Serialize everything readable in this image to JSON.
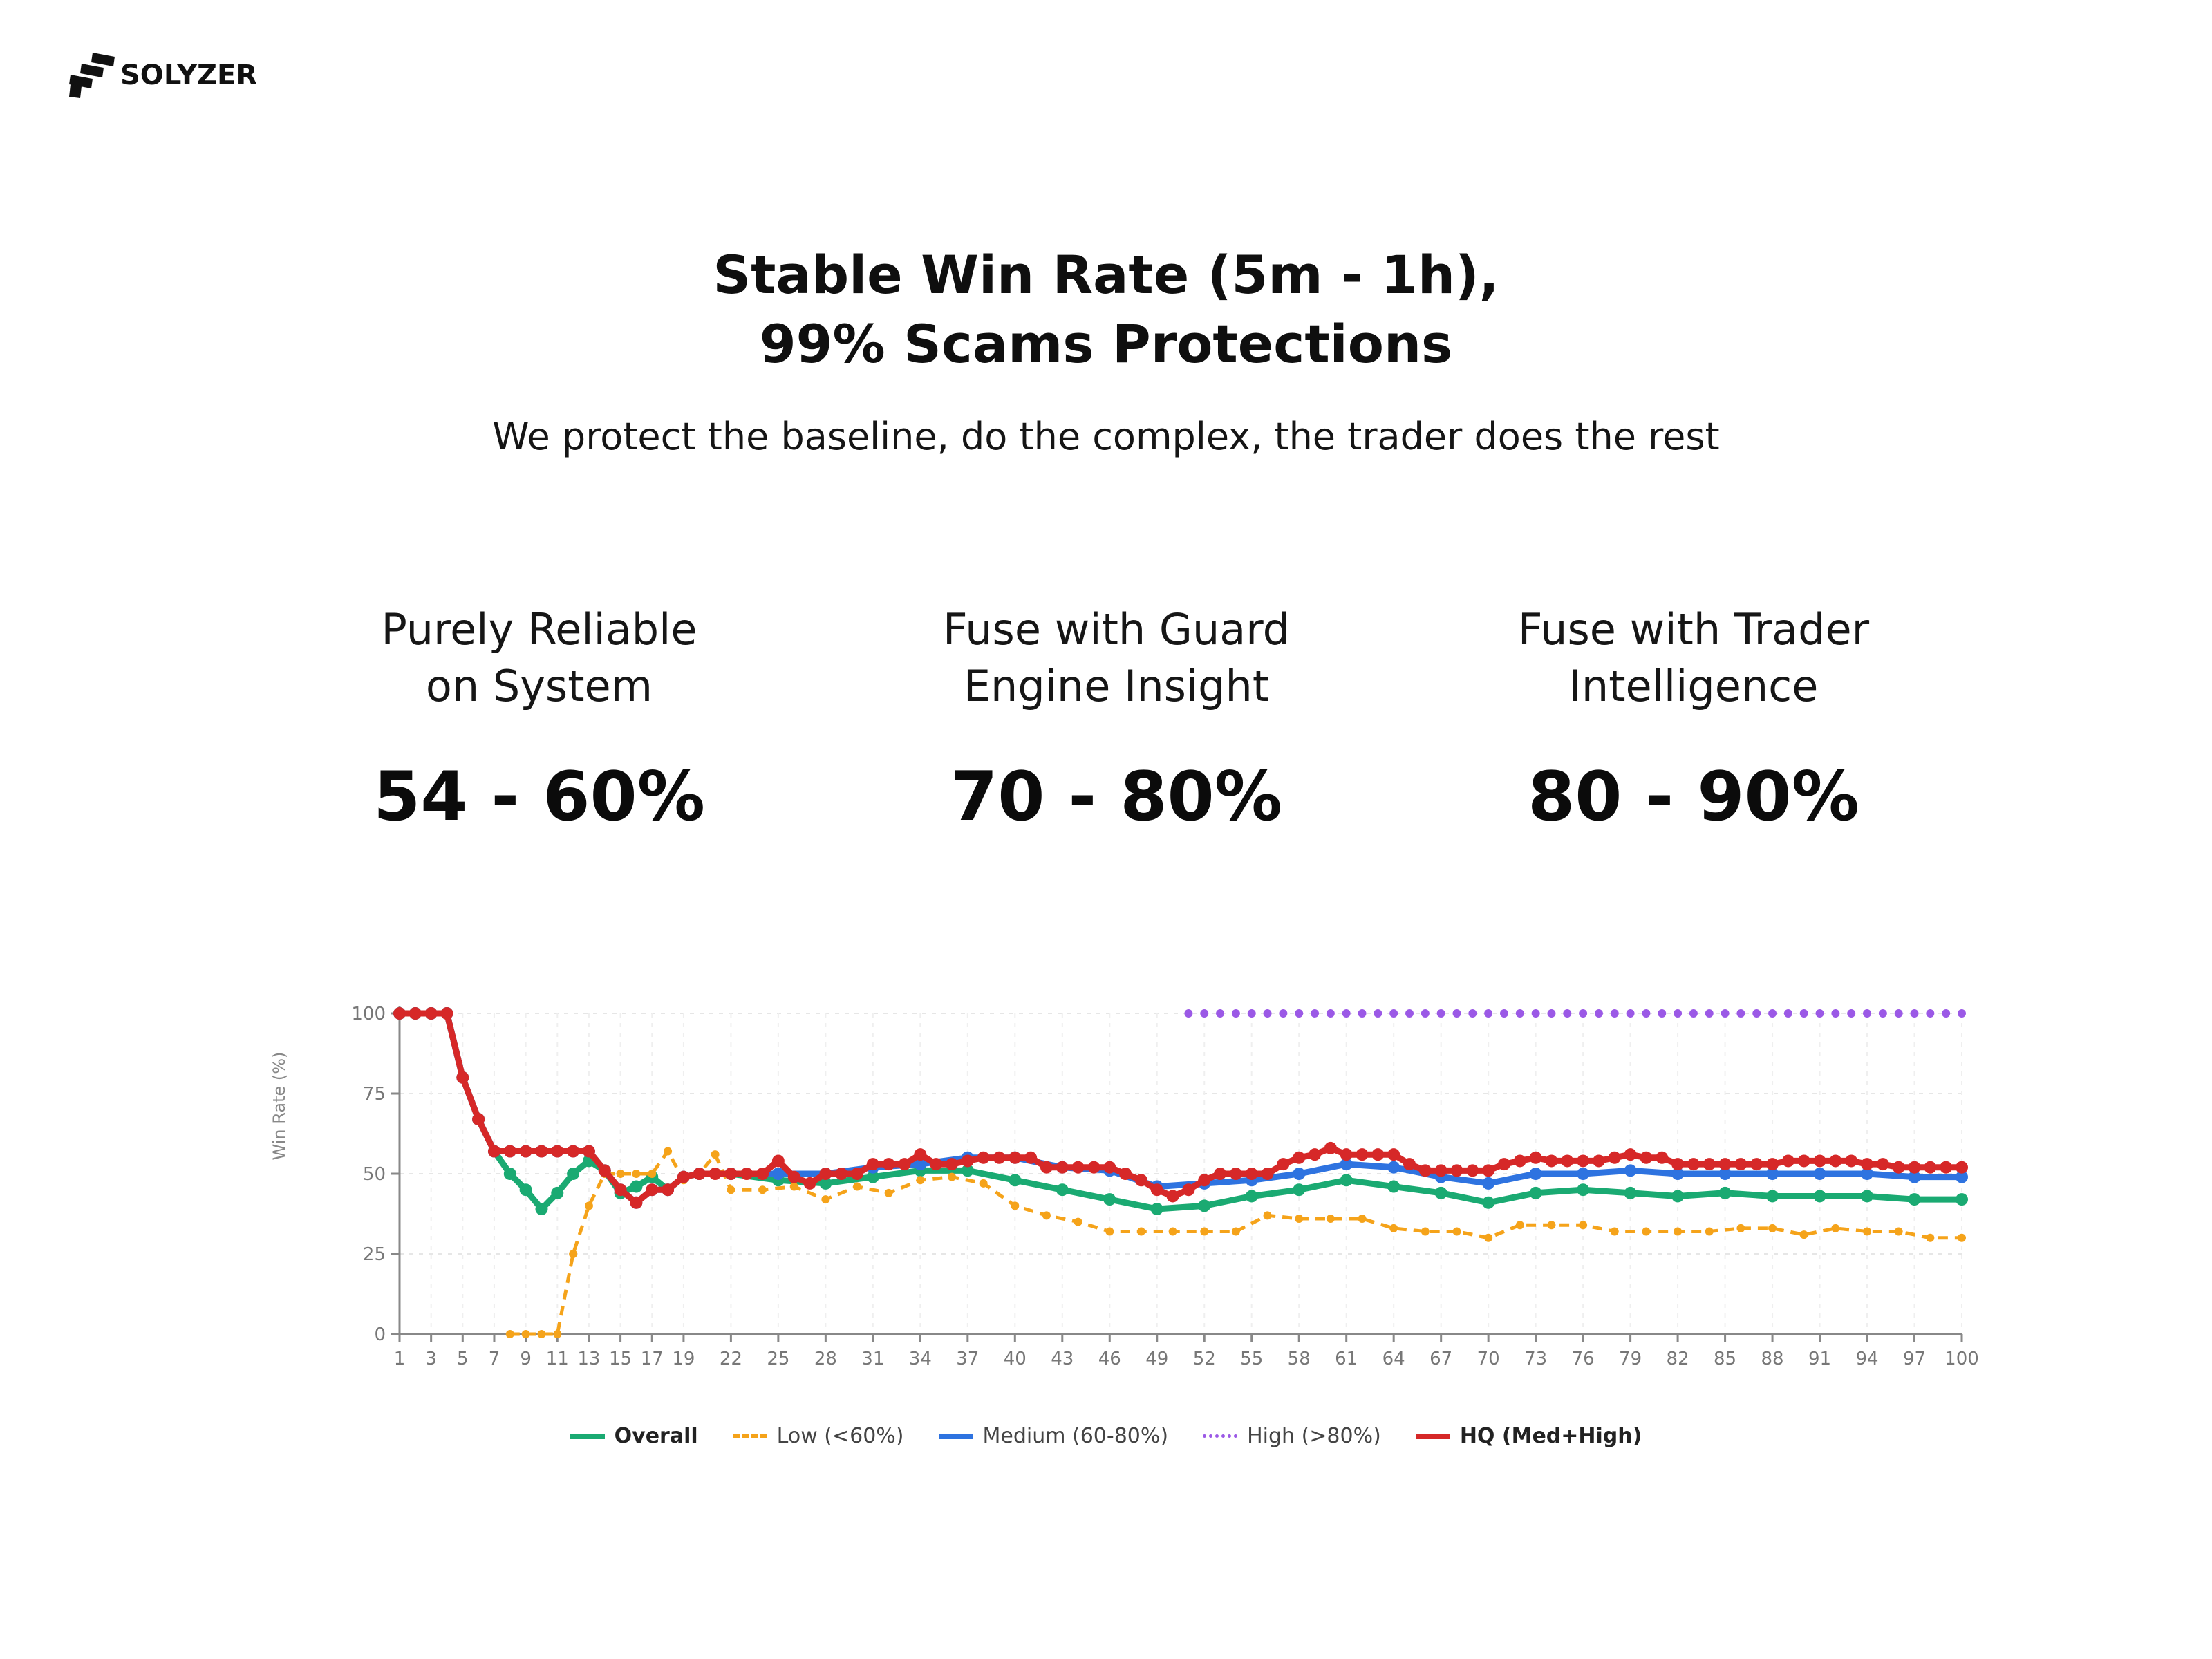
{
  "brand": {
    "name": "SOLYZER",
    "logo_icon": "solyzer-stairs-logo-icon"
  },
  "header": {
    "title_line1": "Stable Win Rate (5m - 1h),",
    "title_line2": "99% Scams Protections",
    "subtitle": "We protect the baseline, do the complex, the trader does the rest"
  },
  "stats": [
    {
      "label_line1": "Purely Reliable",
      "label_line2": "on System",
      "value": "54 - 60%"
    },
    {
      "label_line1": "Fuse with Guard",
      "label_line2": "Engine Insight",
      "value": "70 - 80%"
    },
    {
      "label_line1": "Fuse with Trader",
      "label_line2": "Intelligence",
      "value": "80 - 90%"
    }
  ],
  "chart_data": {
    "type": "line",
    "title": "",
    "xlabel": "",
    "ylabel": "Win Rate (%)",
    "xlim": [
      1,
      100
    ],
    "ylim": [
      0,
      100
    ],
    "yticks": [
      0,
      25,
      50,
      75,
      100
    ],
    "xticks": [
      1,
      3,
      5,
      7,
      9,
      11,
      13,
      15,
      17,
      19,
      22,
      25,
      28,
      31,
      34,
      37,
      40,
      43,
      46,
      49,
      52,
      55,
      58,
      61,
      64,
      67,
      70,
      73,
      76,
      79,
      82,
      85,
      88,
      91,
      94,
      97,
      100
    ],
    "grid": true,
    "legend_position": "bottom",
    "series": [
      {
        "name": "Overall",
        "color": "#1aaa72",
        "style": "solid",
        "x": [
          1,
          2,
          3,
          4,
          5,
          6,
          7,
          8,
          9,
          10,
          11,
          12,
          13,
          14,
          15,
          16,
          17,
          18,
          19,
          20,
          22,
          25,
          28,
          31,
          34,
          37,
          40,
          43,
          46,
          49,
          52,
          55,
          58,
          61,
          64,
          67,
          70,
          73,
          76,
          79,
          82,
          85,
          88,
          91,
          94,
          97,
          100
        ],
        "y": [
          100,
          100,
          100,
          100,
          80,
          67,
          57,
          50,
          45,
          39,
          44,
          50,
          54,
          51,
          44,
          46,
          49,
          45,
          49,
          50,
          50,
          48,
          47,
          49,
          51,
          51,
          48,
          45,
          42,
          39,
          40,
          43,
          45,
          48,
          46,
          44,
          41,
          44,
          45,
          44,
          43,
          44,
          43,
          43,
          43,
          42,
          42
        ]
      },
      {
        "name": "Low (<60%)",
        "color": "#f5a31a",
        "style": "dashed",
        "x": [
          8,
          9,
          10,
          11,
          12,
          13,
          14,
          15,
          16,
          17,
          18,
          19,
          20,
          21,
          22,
          24,
          26,
          28,
          30,
          32,
          34,
          36,
          38,
          40,
          42,
          44,
          46,
          48,
          50,
          52,
          54,
          56,
          58,
          60,
          62,
          64,
          66,
          68,
          70,
          72,
          74,
          76,
          78,
          80,
          82,
          84,
          86,
          88,
          90,
          92,
          94,
          96,
          98,
          100
        ],
        "y": [
          0,
          0,
          0,
          0,
          25,
          40,
          50,
          50,
          50,
          50,
          57,
          48,
          50,
          56,
          45,
          45,
          46,
          42,
          46,
          44,
          48,
          49,
          47,
          40,
          37,
          35,
          32,
          32,
          32,
          32,
          32,
          37,
          36,
          36,
          36,
          33,
          32,
          32,
          30,
          34,
          34,
          34,
          32,
          32,
          32,
          32,
          33,
          33,
          31,
          33,
          32,
          32,
          30,
          30
        ]
      },
      {
        "name": "Medium (60-80%)",
        "color": "#2e73e0",
        "style": "solid",
        "x": [
          1,
          2,
          3,
          4,
          5,
          6,
          7,
          8,
          9,
          10,
          11,
          12,
          13,
          14,
          15,
          16,
          17,
          18,
          19,
          20,
          22,
          25,
          28,
          31,
          34,
          37,
          40,
          43,
          46,
          49,
          52,
          55,
          58,
          61,
          64,
          67,
          70,
          73,
          76,
          79,
          82,
          85,
          88,
          91,
          94,
          97,
          100
        ],
        "y": [
          100,
          100,
          100,
          100,
          80,
          67,
          57,
          57,
          57,
          57,
          57,
          57,
          57,
          51,
          45,
          41,
          45,
          45,
          49,
          50,
          50,
          50,
          50,
          52,
          53,
          55,
          55,
          52,
          51,
          46,
          47,
          48,
          50,
          53,
          52,
          49,
          47,
          50,
          50,
          51,
          50,
          50,
          50,
          50,
          50,
          49,
          49
        ]
      },
      {
        "name": "High (>80%)",
        "color": "#9b59e6",
        "style": "dotted",
        "x": [
          51,
          52,
          53,
          54,
          55,
          56,
          57,
          58,
          59,
          60,
          61,
          62,
          63,
          64,
          65,
          66,
          67,
          68,
          69,
          70,
          71,
          72,
          73,
          74,
          75,
          76,
          77,
          78,
          79,
          80,
          81,
          82,
          83,
          84,
          85,
          86,
          87,
          88,
          89,
          90,
          91,
          92,
          93,
          94,
          95,
          96,
          97,
          98,
          99,
          100
        ],
        "y": [
          100,
          100,
          100,
          100,
          100,
          100,
          100,
          100,
          100,
          100,
          100,
          100,
          100,
          100,
          100,
          100,
          100,
          100,
          100,
          100,
          100,
          100,
          100,
          100,
          100,
          100,
          100,
          100,
          100,
          100,
          100,
          100,
          100,
          100,
          100,
          100,
          100,
          100,
          100,
          100,
          100,
          100,
          100,
          100,
          100,
          100,
          100,
          100,
          100,
          100
        ]
      },
      {
        "name": "HQ (Med+High)",
        "color": "#d62828",
        "style": "solid",
        "x": [
          1,
          2,
          3,
          4,
          5,
          6,
          7,
          8,
          9,
          10,
          11,
          12,
          13,
          14,
          15,
          16,
          17,
          18,
          19,
          20,
          21,
          22,
          23,
          24,
          25,
          26,
          27,
          28,
          29,
          30,
          31,
          32,
          33,
          34,
          35,
          36,
          37,
          38,
          39,
          40,
          41,
          42,
          43,
          44,
          45,
          46,
          47,
          48,
          49,
          50,
          51,
          52,
          53,
          54,
          55,
          56,
          57,
          58,
          59,
          60,
          61,
          62,
          63,
          64,
          65,
          66,
          67,
          68,
          69,
          70,
          71,
          72,
          73,
          74,
          75,
          76,
          77,
          78,
          79,
          80,
          81,
          82,
          83,
          84,
          85,
          86,
          87,
          88,
          89,
          90,
          91,
          92,
          93,
          94,
          95,
          96,
          97,
          98,
          99,
          100
        ],
        "y": [
          100,
          100,
          100,
          100,
          80,
          67,
          57,
          57,
          57,
          57,
          57,
          57,
          57,
          51,
          45,
          41,
          45,
          45,
          49,
          50,
          50,
          50,
          50,
          50,
          54,
          49,
          47,
          50,
          50,
          50,
          53,
          53,
          53,
          56,
          53,
          53,
          54,
          55,
          55,
          55,
          55,
          52,
          52,
          52,
          52,
          52,
          50,
          48,
          45,
          43,
          45,
          48,
          50,
          50,
          50,
          50,
          53,
          55,
          56,
          58,
          56,
          56,
          56,
          56,
          53,
          51,
          51,
          51,
          51,
          51,
          53,
          54,
          55,
          54,
          54,
          54,
          54,
          55,
          56,
          55,
          55,
          53,
          53,
          53,
          53,
          53,
          53,
          53,
          54,
          54,
          54,
          54,
          54,
          53,
          53,
          52,
          52,
          52,
          52,
          52
        ]
      }
    ]
  }
}
